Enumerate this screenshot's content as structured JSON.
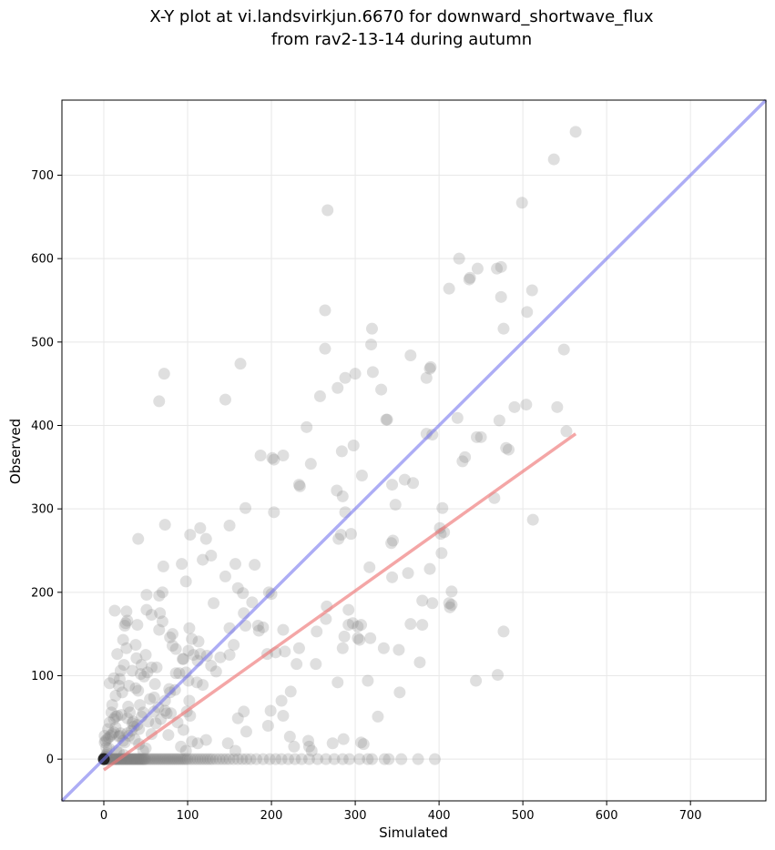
{
  "chart_data": {
    "type": "scatter",
    "title": "X-Y plot at vi.landsvirkjun.6670 for downward_shortwave_flux",
    "subtitle": "from rav2-13-14 during autumn",
    "xlabel": "Simulated",
    "ylabel": "Observed",
    "xlim": [
      -50,
      790
    ],
    "ylim": [
      -50,
      790
    ],
    "xticks": [
      0,
      100,
      200,
      300,
      400,
      500,
      600,
      700
    ],
    "yticks": [
      0,
      100,
      200,
      300,
      400,
      500,
      600,
      700
    ],
    "grid": true,
    "point_color": "#808080",
    "reference_line": {
      "color": "#7777ee",
      "x": [
        -50,
        790
      ],
      "y": [
        -50,
        790
      ]
    },
    "fit_line": {
      "color": "#ee7777",
      "x": [
        0,
        563
      ],
      "y": [
        -13,
        390
      ]
    },
    "zero_obs_sim": [
      0,
      0.5,
      1,
      1.5,
      2,
      2.5,
      3,
      3.5,
      4,
      5,
      6,
      7,
      8,
      9,
      10,
      11,
      12,
      13,
      14,
      15,
      16,
      17,
      18,
      19,
      20,
      21,
      22,
      23,
      24,
      25,
      26,
      27,
      28,
      29,
      30,
      31,
      32,
      33,
      34,
      35,
      36,
      37,
      38,
      39,
      40,
      41,
      42,
      43,
      44,
      45,
      46,
      47,
      48,
      49,
      50,
      52,
      54,
      56,
      58,
      60,
      62,
      64,
      66,
      68,
      70,
      72,
      74,
      76,
      78,
      80,
      82,
      84,
      86,
      88,
      90,
      92,
      94,
      96,
      98,
      100,
      103,
      106,
      109,
      112,
      115,
      118,
      121,
      124,
      127,
      130,
      134,
      138,
      142,
      146,
      150,
      155,
      160,
      165,
      170,
      175,
      182,
      190,
      198,
      205,
      212,
      220,
      228,
      236,
      245,
      255,
      265,
      275,
      285,
      293,
      305,
      315,
      320,
      335,
      340,
      355,
      375,
      395
    ],
    "points": [
      [
        537,
        719
      ],
      [
        563,
        752
      ],
      [
        499,
        667
      ],
      [
        267,
        658
      ],
      [
        424,
        600
      ],
      [
        446,
        588
      ],
      [
        469,
        588
      ],
      [
        474,
        590
      ],
      [
        437,
        577
      ],
      [
        436,
        575
      ],
      [
        412,
        564
      ],
      [
        511,
        562
      ],
      [
        264,
        538
      ],
      [
        505,
        536
      ],
      [
        474,
        554
      ],
      [
        320,
        516
      ],
      [
        477,
        516
      ],
      [
        264,
        492
      ],
      [
        319,
        497
      ],
      [
        549,
        491
      ],
      [
        366,
        484
      ],
      [
        390,
        470
      ],
      [
        389,
        468
      ],
      [
        300,
        462
      ],
      [
        321,
        464
      ],
      [
        288,
        457
      ],
      [
        279,
        445
      ],
      [
        331,
        443
      ],
      [
        72,
        462
      ],
      [
        258,
        435
      ],
      [
        66,
        429
      ],
      [
        145,
        431
      ],
      [
        338,
        407
      ],
      [
        472,
        406
      ],
      [
        490,
        422
      ],
      [
        504,
        425
      ],
      [
        541,
        422
      ],
      [
        552,
        393
      ],
      [
        163,
        474
      ],
      [
        385,
        457
      ],
      [
        392,
        389
      ],
      [
        445,
        386
      ],
      [
        480,
        373
      ],
      [
        242,
        398
      ],
      [
        187,
        364
      ],
      [
        214,
        364
      ],
      [
        201,
        361
      ],
      [
        203,
        359
      ],
      [
        247,
        354
      ],
      [
        284,
        369
      ],
      [
        298,
        376
      ],
      [
        428,
        357
      ],
      [
        431,
        362
      ],
      [
        422,
        409
      ],
      [
        308,
        340
      ],
      [
        278,
        322
      ],
      [
        285,
        315
      ],
      [
        344,
        329
      ],
      [
        359,
        335
      ],
      [
        369,
        331
      ],
      [
        233,
        329
      ],
      [
        234,
        327
      ],
      [
        203,
        296
      ],
      [
        288,
        296
      ],
      [
        280,
        264
      ],
      [
        283,
        269
      ],
      [
        343,
        259
      ],
      [
        345,
        262
      ],
      [
        337,
        407
      ],
      [
        404,
        301
      ],
      [
        406,
        272
      ],
      [
        402,
        270
      ],
      [
        348,
        305
      ],
      [
        295,
        270
      ],
      [
        150,
        280
      ],
      [
        169,
        301
      ],
      [
        73,
        281
      ],
      [
        103,
        269
      ],
      [
        115,
        277
      ],
      [
        122,
        264
      ],
      [
        118,
        239
      ],
      [
        71,
        231
      ],
      [
        93,
        234
      ],
      [
        157,
        234
      ],
      [
        128,
        244
      ],
      [
        200,
        198
      ],
      [
        197,
        200
      ],
      [
        160,
        205
      ],
      [
        145,
        219
      ],
      [
        166,
        199
      ],
      [
        177,
        188
      ],
      [
        184,
        160
      ],
      [
        190,
        158
      ],
      [
        185,
        154
      ],
      [
        167,
        175
      ],
      [
        169,
        160
      ],
      [
        180,
        233
      ],
      [
        150,
        157
      ],
      [
        155,
        137
      ],
      [
        131,
        187
      ],
      [
        123,
        124
      ],
      [
        139,
        122
      ],
      [
        128,
        112
      ],
      [
        112,
        118
      ],
      [
        150,
        125
      ],
      [
        134,
        105
      ],
      [
        118,
        89
      ],
      [
        111,
        92
      ],
      [
        98,
        104
      ],
      [
        94,
        120
      ],
      [
        102,
        157
      ],
      [
        86,
        132
      ],
      [
        82,
        150
      ],
      [
        79,
        146
      ],
      [
        70,
        165
      ],
      [
        66,
        155
      ],
      [
        70,
        200
      ],
      [
        98,
        213
      ],
      [
        41,
        264
      ],
      [
        51,
        197
      ],
      [
        51,
        179
      ],
      [
        57,
        173
      ],
      [
        67,
        175
      ],
      [
        66,
        196
      ],
      [
        40,
        161
      ],
      [
        38,
        137
      ],
      [
        39,
        121
      ],
      [
        41,
        82
      ],
      [
        28,
        166
      ],
      [
        26,
        163
      ],
      [
        25,
        160
      ],
      [
        27,
        133
      ],
      [
        23,
        143
      ],
      [
        16,
        126
      ],
      [
        20,
        106
      ],
      [
        24,
        113
      ],
      [
        13,
        178
      ],
      [
        27,
        177
      ],
      [
        14,
        76
      ],
      [
        7,
        91
      ],
      [
        12,
        97
      ],
      [
        19,
        96
      ],
      [
        10,
        65
      ],
      [
        18,
        88
      ],
      [
        22,
        80
      ],
      [
        30,
        88
      ],
      [
        21,
        53
      ],
      [
        14,
        51
      ],
      [
        14,
        38
      ],
      [
        18,
        27
      ],
      [
        20,
        31
      ],
      [
        7,
        44
      ],
      [
        5,
        36
      ],
      [
        1,
        28
      ],
      [
        3,
        14
      ],
      [
        1,
        20
      ],
      [
        2,
        22
      ],
      [
        4,
        24
      ],
      [
        6,
        26
      ],
      [
        8,
        28
      ],
      [
        10,
        30
      ],
      [
        12,
        32
      ],
      [
        34,
        43
      ],
      [
        40,
        41
      ],
      [
        45,
        51
      ],
      [
        47,
        56
      ],
      [
        29,
        63
      ],
      [
        34,
        106
      ],
      [
        44,
        102
      ],
      [
        48,
        99
      ],
      [
        45,
        113
      ],
      [
        50,
        125
      ],
      [
        52,
        104
      ],
      [
        57,
        110
      ],
      [
        60,
        57
      ],
      [
        65,
        62
      ],
      [
        55,
        72
      ],
      [
        75,
        55
      ],
      [
        80,
        55
      ],
      [
        73,
        70
      ],
      [
        79,
        80
      ],
      [
        78,
        84
      ],
      [
        77,
        29
      ],
      [
        88,
        44
      ],
      [
        95,
        35
      ],
      [
        99,
        57
      ],
      [
        103,
        52
      ],
      [
        102,
        70
      ],
      [
        101,
        94
      ],
      [
        107,
        125
      ],
      [
        115,
        126
      ],
      [
        113,
        141
      ],
      [
        105,
        144
      ],
      [
        82,
        136
      ],
      [
        86,
        103
      ],
      [
        92,
        15
      ],
      [
        98,
        10
      ],
      [
        105,
        21
      ],
      [
        112,
        19
      ],
      [
        122,
        23
      ],
      [
        148,
        19
      ],
      [
        157,
        10
      ],
      [
        160,
        49
      ],
      [
        167,
        57
      ],
      [
        170,
        33
      ],
      [
        196,
        40
      ],
      [
        199,
        58
      ],
      [
        214,
        52
      ],
      [
        212,
        70
      ],
      [
        223,
        81
      ],
      [
        230,
        114
      ],
      [
        233,
        133
      ],
      [
        216,
        129
      ],
      [
        214,
        155
      ],
      [
        205,
        128
      ],
      [
        195,
        126
      ],
      [
        222,
        27
      ],
      [
        227,
        15
      ],
      [
        244,
        22
      ],
      [
        245,
        15
      ],
      [
        248,
        10
      ],
      [
        253,
        114
      ],
      [
        254,
        153
      ],
      [
        266,
        183
      ],
      [
        265,
        168
      ],
      [
        279,
        92
      ],
      [
        285,
        133
      ],
      [
        287,
        147
      ],
      [
        292,
        161
      ],
      [
        292,
        179
      ],
      [
        297,
        163
      ],
      [
        305,
        143
      ],
      [
        303,
        159
      ],
      [
        307,
        161
      ],
      [
        303,
        145
      ],
      [
        307,
        20
      ],
      [
        310,
        18
      ],
      [
        286,
        24
      ],
      [
        273,
        19
      ],
      [
        315,
        94
      ],
      [
        327,
        51
      ],
      [
        318,
        145
      ],
      [
        317,
        230
      ],
      [
        334,
        133
      ],
      [
        344,
        218
      ],
      [
        352,
        131
      ],
      [
        363,
        223
      ],
      [
        353,
        80
      ],
      [
        366,
        162
      ],
      [
        380,
        161
      ],
      [
        377,
        116
      ],
      [
        385,
        390
      ],
      [
        389,
        228
      ],
      [
        392,
        187
      ],
      [
        403,
        247
      ],
      [
        412,
        187
      ],
      [
        415,
        185
      ],
      [
        413,
        182
      ],
      [
        415,
        201
      ],
      [
        450,
        386
      ],
      [
        477,
        153
      ],
      [
        483,
        371
      ],
      [
        444,
        94
      ],
      [
        466,
        313
      ],
      [
        470,
        101
      ],
      [
        512,
        287
      ],
      [
        401,
        277
      ],
      [
        380,
        190
      ],
      [
        16,
        52
      ],
      [
        12,
        48
      ],
      [
        9,
        56
      ],
      [
        6,
        13
      ],
      [
        4,
        7
      ],
      [
        3,
        5
      ],
      [
        2,
        3
      ],
      [
        1,
        2
      ],
      [
        0,
        1
      ],
      [
        25,
        20
      ],
      [
        30,
        28
      ],
      [
        33,
        34
      ],
      [
        36,
        39
      ],
      [
        19,
        28
      ],
      [
        23,
        22
      ],
      [
        28,
        31
      ],
      [
        35,
        45
      ],
      [
        37,
        24
      ],
      [
        42,
        18
      ],
      [
        47,
        10
      ],
      [
        50,
        13
      ],
      [
        24,
        5
      ],
      [
        18,
        8
      ],
      [
        15,
        10
      ],
      [
        28,
        49
      ],
      [
        31,
        56
      ],
      [
        42,
        36
      ],
      [
        62,
        43
      ],
      [
        68,
        48
      ],
      [
        61,
        90
      ],
      [
        63,
        110
      ],
      [
        60,
        74
      ],
      [
        73,
        58
      ],
      [
        85,
        83
      ],
      [
        90,
        103
      ],
      [
        95,
        120
      ],
      [
        101,
        130
      ],
      [
        38,
        85
      ],
      [
        43,
        65
      ],
      [
        53,
        45
      ],
      [
        57,
        30
      ]
    ]
  }
}
